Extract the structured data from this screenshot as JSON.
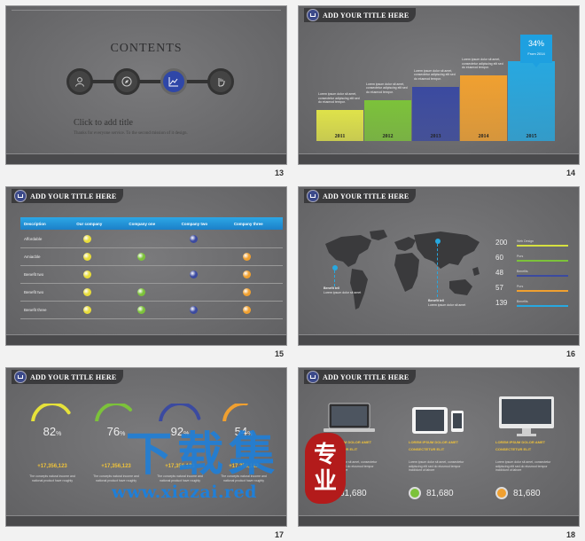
{
  "slide_numbers": [
    "13",
    "14",
    "15",
    "16",
    "17",
    "18"
  ],
  "header_title": "ADD YOUR TITLE HERE",
  "s13": {
    "title": "CONTENTS",
    "icons": [
      "user-icon",
      "compass-icon",
      "chart-icon",
      "hand-icon"
    ],
    "click_title": "Click to add title",
    "subtitle": "Thanks for everyone service. To the second mission of it design."
  },
  "s14": {
    "callout_pct": "34%",
    "callout_from": "From 2014",
    "bar_text": "Lorem ipsum dolor sit amet, consectetur adipiscing elit sed do eiusmod tempor.",
    "chart_data": {
      "type": "bar",
      "categories": [
        "2011",
        "2012",
        "2013",
        "2014",
        "2015"
      ],
      "values": [
        28,
        37,
        49,
        59,
        72
      ],
      "colors": [
        "#dfe24a",
        "#7cc23a",
        "#3b4aa0",
        "#f0a030",
        "#27a8e0"
      ]
    }
  },
  "s15": {
    "columns": [
      "Description",
      "Our company",
      "Company one",
      "Company two",
      "Company three"
    ],
    "rows": [
      {
        "label": "Affordable",
        "marks": [
          "y",
          "",
          "b",
          ""
        ]
      },
      {
        "label": "Amiacble",
        "marks": [
          "y",
          "g",
          "",
          "o"
        ]
      },
      {
        "label": "Benefit two",
        "marks": [
          "y",
          "",
          "b",
          "o"
        ]
      },
      {
        "label": "Benefit two",
        "marks": [
          "y",
          "g",
          "",
          "o"
        ]
      },
      {
        "label": "Benefit three",
        "marks": [
          "y",
          "g",
          "b",
          "o"
        ]
      }
    ]
  },
  "s16": {
    "pin_title": "Benefit tell",
    "pin_text": "Lorem ipsum dolor sit amet",
    "stats": [
      {
        "value": "200",
        "label": "Web Design",
        "color": "#d6e040"
      },
      {
        "value": "60",
        "label": "Purs",
        "color": "#7cc23a"
      },
      {
        "value": "48",
        "label": "Benefits",
        "color": "#3b4aa0"
      },
      {
        "value": "57",
        "label": "Purs",
        "color": "#f0a030"
      },
      {
        "value": "139",
        "label": "Benefits",
        "color": "#27a8e0"
      }
    ]
  },
  "s17": {
    "gauges": [
      {
        "value": "82",
        "unit": "%",
        "color": "#e6e23a",
        "fill": 0.82
      },
      {
        "value": "76",
        "unit": "%",
        "color": "#7cc23a",
        "fill": 0.76
      },
      {
        "value": "92",
        "unit": "%",
        "color": "#3b4aa0",
        "fill": 0.92
      },
      {
        "value": "54",
        "unit": "%",
        "color": "#f0a030",
        "fill": 0.54
      }
    ],
    "amount": "+17,356,123",
    "text": "The concepts natural income and national product have roughly"
  },
  "s18": {
    "devices": [
      {
        "icon": "laptop-icon",
        "title": "LOREM IPSUM DOLOR AMET CONSECTETUR ELIT",
        "stat": "81,680",
        "circle": "#3b4aa0"
      },
      {
        "icon": "tablet-phone-icon",
        "title": "LOREM IPSUM DOLOR AMET CONSECTETUR ELIT",
        "stat": "81,680",
        "circle": "#7cc23a"
      },
      {
        "icon": "monitor-icon",
        "title": "LOREM IPSUM DOLOR AMET CONSECTETUR ELIT",
        "stat": "81,680",
        "circle": "#f0a030"
      }
    ],
    "body": "Lorem ipsum dolor sit amet, consectetur adipiscing elit sed do eiusmod tempor incididunt ut labore"
  },
  "watermark": {
    "big": "下载集",
    "seal_1": "专",
    "seal_2": "业",
    "url": "www.xiazai.red"
  }
}
